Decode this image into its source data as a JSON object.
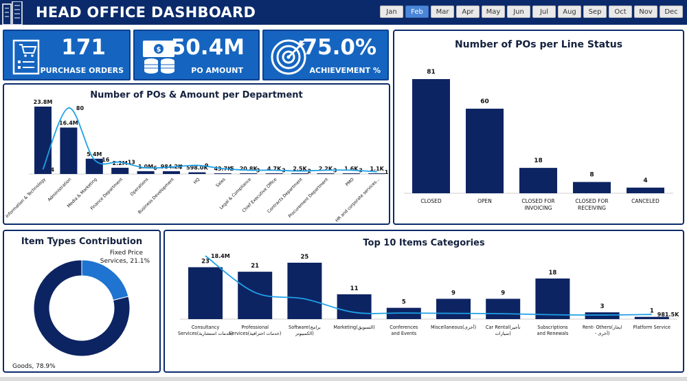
{
  "header": {
    "title": "HEAD OFFICE DASHBOARD",
    "months": [
      "Jan",
      "Feb",
      "Mar",
      "Apr",
      "May",
      "Jun",
      "Jul",
      "Aug",
      "Sep",
      "Oct",
      "Nov",
      "Dec"
    ],
    "selected_month": "Feb"
  },
  "kpis": [
    {
      "value": "171",
      "label": "PURCHASE ORDERS",
      "icon": "cart-icon"
    },
    {
      "value": "50.4M",
      "label": "PO AMOUNT",
      "icon": "money-icon"
    },
    {
      "value": "75.0%",
      "label": "ACHIEVEMENT %",
      "icon": "target-icon"
    }
  ],
  "colors": {
    "navy": "#0b2a6b",
    "bar": "#0d2463",
    "line": "#1ea0e6",
    "kpi": "#1565c0",
    "donut_light": "#1e74d0"
  },
  "chart_data": [
    {
      "type": "bar",
      "title": "Number of POs & Amount per Department",
      "categories": [
        "Information & Technology",
        "Administration",
        "Media & Marketing",
        "Finance Department",
        "Operations",
        "Business Development",
        "HQ",
        "Sales",
        "Legal & Compliance",
        "Chief Executive Office",
        "Contracts Department",
        "Procurement Department",
        "PMO",
        "HR and corporate services..."
      ],
      "series": [
        {
          "values": [
            23.8,
            16.4,
            5.4,
            2.2,
            1.0,
            0.9842,
            0.598,
            0.0437,
            0.0208,
            0.0047,
            0.0025,
            0.0022,
            0.0016,
            0.0011
          ],
          "labels": [
            "23.8M",
            "16.4M",
            "5.4M",
            "2.2M",
            "1.0M",
            "984.2K",
            "598.0K",
            "43.7K",
            "20.8K",
            "4.7K",
            "2.5K",
            "2.2K",
            "1.6K",
            "1.1K"
          ]
        },
        {
          "values": [
            4,
            80,
            16,
            13,
            6,
            7,
            9,
            5,
            3,
            3,
            2,
            3,
            3,
            1
          ]
        }
      ]
    },
    {
      "type": "bar",
      "title": "Number of POs per Line Status",
      "categories": [
        "CLOSED",
        "OPEN",
        "CLOSED FOR INVOICING",
        "CLOSED FOR RECEIVING",
        "CANCELED"
      ],
      "values": [
        81,
        60,
        18,
        8,
        4
      ]
    },
    {
      "type": "pie",
      "title": "Item Types Contribution",
      "slices": [
        {
          "name": "Fixed Price Services",
          "value": 21.1,
          "label": "Fixed Price Services, 21.1%"
        },
        {
          "name": "Goods",
          "value": 78.9,
          "label": "Goods, 78.9%"
        }
      ]
    },
    {
      "type": "bar",
      "title": "Top 10 Items Categories",
      "categories": [
        "Consultancy Services(خدمات استشارية)",
        "Professional Services(خدمات احترافية)",
        "Software(برامج الكمبيوتر)",
        "Marketing(التسويق)",
        "Conferences and Events",
        "Miscellaneous(أخرى)",
        "Car Rental(تأجير سيارات)",
        "Subscriptions and Renewals",
        "Rent- Others(ايجار - أخرى)",
        "Platform Service"
      ],
      "series": [
        {
          "values": [
            23,
            21,
            25,
            11,
            5,
            9,
            9,
            18,
            3,
            1
          ]
        },
        {
          "values": [
            18.4,
            7.5,
            5.6,
            1.6,
            1.4,
            1.3,
            1.2,
            0.9,
            0.8,
            0.9815
          ],
          "labels": [
            "18.4M",
            "",
            "",
            "",
            "",
            "",
            "",
            "",
            "",
            "981.5K"
          ]
        }
      ]
    }
  ]
}
